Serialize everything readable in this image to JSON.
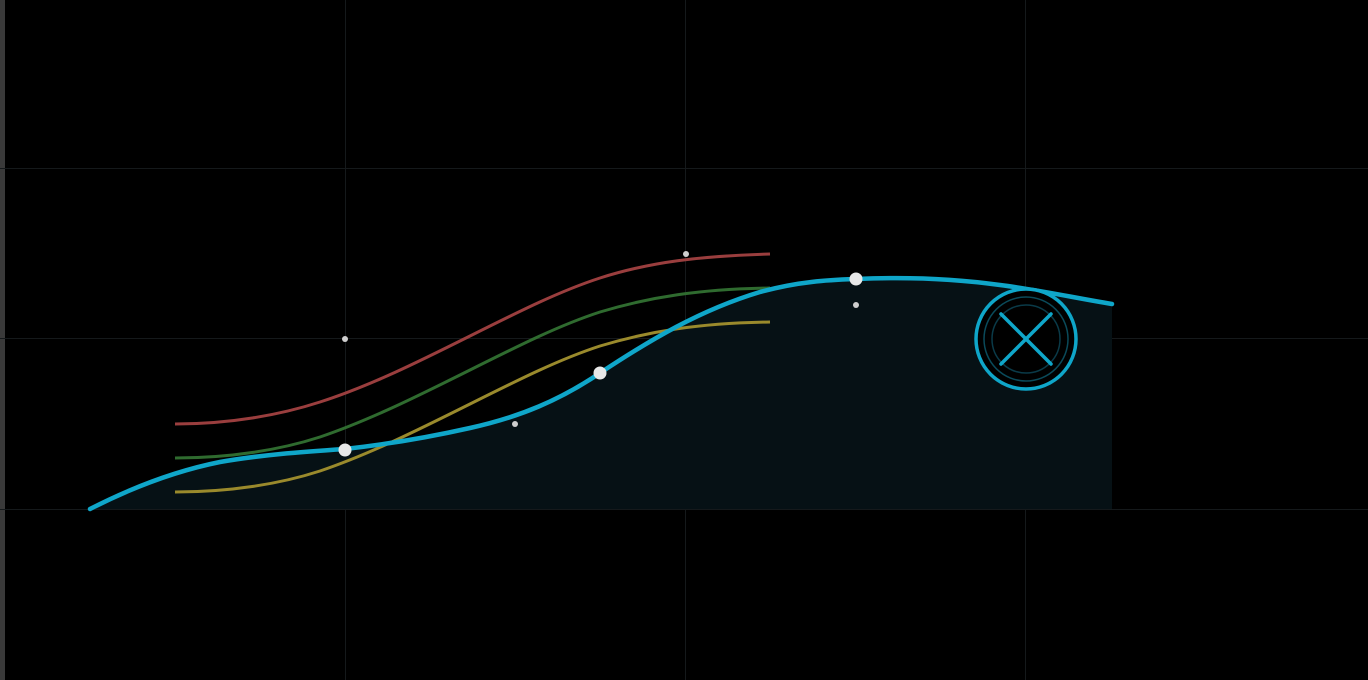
{
  "theme": {
    "background": "#000000",
    "grid_color": "#1a1d1f",
    "accent": "#0ea5c8",
    "fill": "#071115",
    "handle_color": "#e8e8e8",
    "ref_colors": [
      "#9a3a3a",
      "#2f6a2f",
      "#9a8a2a"
    ]
  },
  "graph": {
    "grid": true,
    "main_curve_label": "",
    "control_points": [
      {
        "role": "point",
        "interactable": true
      },
      {
        "role": "point",
        "interactable": true
      },
      {
        "role": "point",
        "interactable": true
      }
    ],
    "tangent_handles": 5,
    "reference_curves": [
      {
        "name": "",
        "color": "#9a3a3a"
      },
      {
        "name": "",
        "color": "#2f6a2f"
      },
      {
        "name": "",
        "color": "#9a8a2a"
      }
    ],
    "target_widget": {
      "icon": "target-x-icon"
    }
  }
}
